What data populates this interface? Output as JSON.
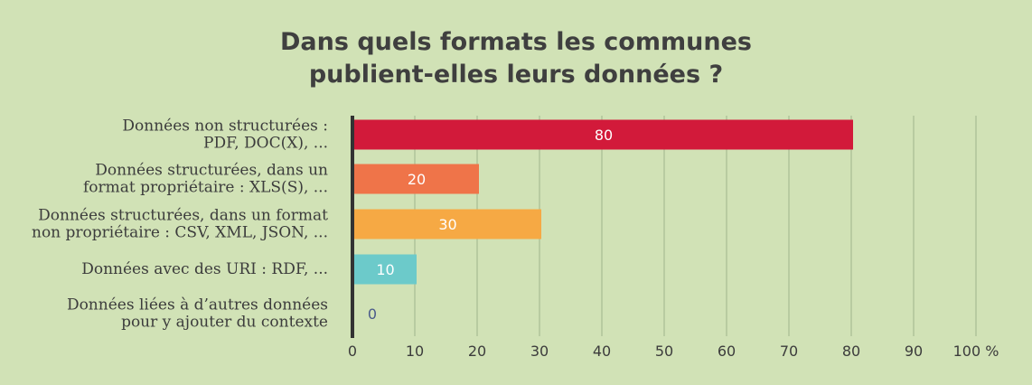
{
  "chart_data": {
    "type": "bar",
    "orientation": "horizontal",
    "title_lines": [
      "Dans quels formats les communes",
      "publient-elles leurs données ?"
    ],
    "categories": [
      [
        "Données non structurées :",
        "PDF, DOC(X), ..."
      ],
      [
        "Données structurées, dans un",
        "format propriétaire : XLS(S), ..."
      ],
      [
        "Données structurées, dans un format",
        "non propriétaire : CSV, XML, JSON, ..."
      ],
      [
        "Données avec des URI : RDF, ..."
      ],
      [
        "Données liées à d’autres données",
        "pour y ajouter du contexte"
      ]
    ],
    "values": [
      80,
      20,
      30,
      10,
      0
    ],
    "value_labels": [
      "80",
      "20",
      "30",
      "10",
      "0"
    ],
    "colors": [
      "#d21a3a",
      "#ef7449",
      "#f6a944",
      "#6ccaca",
      "#6ccaca"
    ],
    "zero_label_color": "#4a5a8a",
    "x_ticks": [
      "0",
      "10",
      "20",
      "30",
      "40",
      "50",
      "60",
      "70",
      "80",
      "90",
      "100 %"
    ],
    "xlim": [
      0,
      100
    ],
    "grid": true,
    "legend": "none"
  },
  "colors": {
    "background": "#d1e2b6",
    "gridline": "#9fb48c",
    "axis": "#333333"
  }
}
